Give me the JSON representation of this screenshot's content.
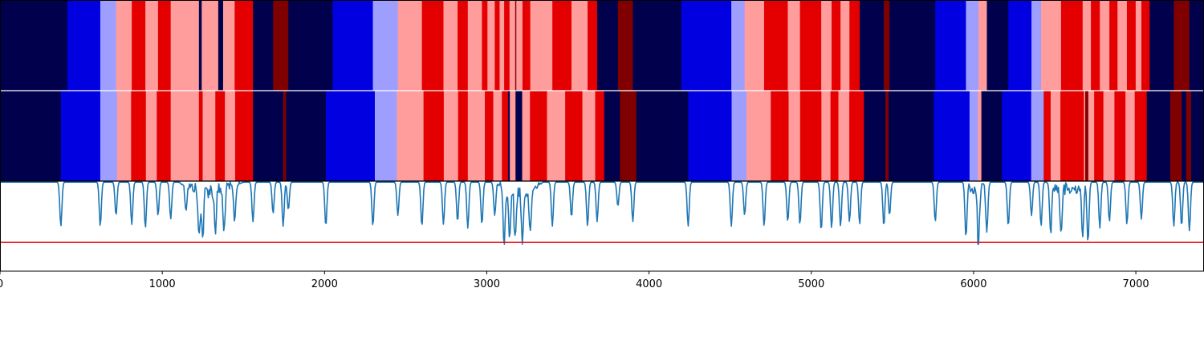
{
  "chart_data": {
    "type": "heatmap",
    "title": "",
    "xlabel": "",
    "ylabel": "",
    "xlim": [
      0,
      7420
    ],
    "x_ticks": [
      0,
      1000,
      2000,
      3000,
      4000,
      5000,
      6000,
      7000
    ],
    "x_tick_labels": [
      "0",
      "1000",
      "2000",
      "3000",
      "4000",
      "5000",
      "6000",
      "7000"
    ],
    "grid": false,
    "legend": "none",
    "colors": {
      "-3": "#00004c",
      "-2": "#0000e0",
      "-1": "#9e9eff",
      "1": "#ff9c9c",
      "2": "#e40000",
      "3": "#800000",
      "line": "#1f77b4",
      "threshold": "#e41a1c",
      "separator": "#ffffff"
    },
    "strips": [
      {
        "segments": [
          [
            0,
            -3
          ],
          [
            415,
            -2
          ],
          [
            618,
            -1
          ],
          [
            715,
            1
          ],
          [
            812,
            2
          ],
          [
            896,
            1
          ],
          [
            974,
            2
          ],
          [
            1052,
            1
          ],
          [
            1226,
            -3
          ],
          [
            1243,
            1
          ],
          [
            1345,
            -3
          ],
          [
            1375,
            1
          ],
          [
            1446,
            2
          ],
          [
            1559,
            -3
          ],
          [
            1683,
            3
          ],
          [
            1777,
            -3
          ],
          [
            2050,
            -2
          ],
          [
            2298,
            -1
          ],
          [
            2452,
            1
          ],
          [
            2600,
            2
          ],
          [
            2733,
            1
          ],
          [
            2820,
            2
          ],
          [
            2883,
            1
          ],
          [
            2970,
            2
          ],
          [
            3004,
            1
          ],
          [
            3049,
            2
          ],
          [
            3079,
            1
          ],
          [
            3107,
            2
          ],
          [
            3140,
            1
          ],
          [
            3175,
            3
          ],
          [
            3182,
            1
          ],
          [
            3220,
            2
          ],
          [
            3268,
            1
          ],
          [
            3404,
            2
          ],
          [
            3522,
            1
          ],
          [
            3621,
            2
          ],
          [
            3680,
            -3
          ],
          [
            3808,
            3
          ],
          [
            3900,
            -3
          ],
          [
            4199,
            -2
          ],
          [
            4507,
            -1
          ],
          [
            4589,
            1
          ],
          [
            4709,
            2
          ],
          [
            4855,
            1
          ],
          [
            4930,
            2
          ],
          [
            5061,
            1
          ],
          [
            5125,
            2
          ],
          [
            5180,
            1
          ],
          [
            5235,
            2
          ],
          [
            5298,
            -3
          ],
          [
            5447,
            3
          ],
          [
            5482,
            -3
          ],
          [
            5764,
            -2
          ],
          [
            5953,
            -1
          ],
          [
            6030,
            1
          ],
          [
            6082,
            -3
          ],
          [
            6214,
            -2
          ],
          [
            6357,
            -1
          ],
          [
            6416,
            1
          ],
          [
            6539,
            2
          ],
          [
            6672,
            1
          ],
          [
            6723,
            2
          ],
          [
            6778,
            1
          ],
          [
            6837,
            2
          ],
          [
            6887,
            1
          ],
          [
            6945,
            2
          ],
          [
            6999,
            1
          ],
          [
            7034,
            2
          ],
          [
            7085,
            -3
          ],
          [
            7234,
            3
          ],
          [
            7330,
            -3
          ]
        ]
      },
      {
        "segments": [
          [
            0,
            -3
          ],
          [
            375,
            -2
          ],
          [
            618,
            -1
          ],
          [
            721,
            1
          ],
          [
            808,
            2
          ],
          [
            899,
            1
          ],
          [
            966,
            2
          ],
          [
            1052,
            1
          ],
          [
            1226,
            2
          ],
          [
            1249,
            1
          ],
          [
            1327,
            2
          ],
          [
            1386,
            1
          ],
          [
            1449,
            2
          ],
          [
            1559,
            -3
          ],
          [
            1745,
            3
          ],
          [
            1763,
            -3
          ],
          [
            2008,
            -2
          ],
          [
            2310,
            -1
          ],
          [
            2445,
            1
          ],
          [
            2610,
            2
          ],
          [
            2735,
            1
          ],
          [
            2823,
            2
          ],
          [
            2883,
            1
          ],
          [
            2988,
            2
          ],
          [
            3040,
            1
          ],
          [
            3093,
            2
          ],
          [
            3131,
            -3
          ],
          [
            3142,
            1
          ],
          [
            3177,
            -3
          ],
          [
            3218,
            1
          ],
          [
            3266,
            2
          ],
          [
            3371,
            1
          ],
          [
            3483,
            2
          ],
          [
            3589,
            1
          ],
          [
            3668,
            2
          ],
          [
            3723,
            -3
          ],
          [
            3821,
            3
          ],
          [
            3922,
            -3
          ],
          [
            4241,
            -2
          ],
          [
            4509,
            -1
          ],
          [
            4600,
            1
          ],
          [
            4750,
            2
          ],
          [
            4860,
            1
          ],
          [
            4931,
            2
          ],
          [
            5062,
            1
          ],
          [
            5118,
            2
          ],
          [
            5167,
            1
          ],
          [
            5234,
            2
          ],
          [
            5324,
            -3
          ],
          [
            5457,
            3
          ],
          [
            5476,
            -3
          ],
          [
            5755,
            -2
          ],
          [
            5975,
            -1
          ],
          [
            6026,
            1
          ],
          [
            6048,
            -3
          ],
          [
            6175,
            -2
          ],
          [
            6355,
            -1
          ],
          [
            6432,
            2
          ],
          [
            6475,
            1
          ],
          [
            6535,
            2
          ],
          [
            6680,
            1
          ],
          [
            6688,
            3
          ],
          [
            6707,
            1
          ],
          [
            6743,
            2
          ],
          [
            6800,
            1
          ],
          [
            6868,
            2
          ],
          [
            6936,
            1
          ],
          [
            6993,
            2
          ],
          [
            7067,
            -3
          ],
          [
            7212,
            3
          ],
          [
            7282,
            -3
          ],
          [
            7310,
            3
          ],
          [
            7340,
            -3
          ]
        ]
      }
    ],
    "line_panel": {
      "ylim": [
        0,
        1
      ],
      "threshold": 0.32,
      "baseline": 0.99,
      "spikes": [
        [
          375,
          0.5
        ],
        [
          618,
          0.5
        ],
        [
          715,
          0.62
        ],
        [
          812,
          0.52
        ],
        [
          896,
          0.48
        ],
        [
          974,
          0.62
        ],
        [
          1052,
          0.58
        ],
        [
          1146,
          0.72
        ],
        [
          1226,
          0.45
        ],
        [
          1249,
          0.45
        ],
        [
          1327,
          0.55
        ],
        [
          1380,
          0.5
        ],
        [
          1446,
          0.6
        ],
        [
          1559,
          0.55
        ],
        [
          1683,
          0.64
        ],
        [
          1745,
          0.5
        ],
        [
          1777,
          0.68
        ],
        [
          2008,
          0.5
        ],
        [
          2298,
          0.5
        ],
        [
          2452,
          0.62
        ],
        [
          2600,
          0.5
        ],
        [
          2733,
          0.52
        ],
        [
          2820,
          0.55
        ],
        [
          2883,
          0.48
        ],
        [
          2970,
          0.52
        ],
        [
          3049,
          0.62
        ],
        [
          3107,
          0.35
        ],
        [
          3140,
          0.45
        ],
        [
          3175,
          0.4
        ],
        [
          3220,
          0.35
        ],
        [
          3268,
          0.45
        ],
        [
          3404,
          0.5
        ],
        [
          3522,
          0.6
        ],
        [
          3621,
          0.5
        ],
        [
          3680,
          0.55
        ],
        [
          3808,
          0.72
        ],
        [
          3900,
          0.55
        ],
        [
          4241,
          0.5
        ],
        [
          4507,
          0.5
        ],
        [
          4589,
          0.62
        ],
        [
          4709,
          0.5
        ],
        [
          4855,
          0.55
        ],
        [
          4930,
          0.52
        ],
        [
          5061,
          0.45
        ],
        [
          5125,
          0.48
        ],
        [
          5180,
          0.5
        ],
        [
          5235,
          0.55
        ],
        [
          5298,
          0.52
        ],
        [
          5447,
          0.5
        ],
        [
          5482,
          0.62
        ],
        [
          5764,
          0.55
        ],
        [
          5953,
          0.38
        ],
        [
          6030,
          0.35
        ],
        [
          6082,
          0.48
        ],
        [
          6214,
          0.5
        ],
        [
          6357,
          0.62
        ],
        [
          6416,
          0.5
        ],
        [
          6475,
          0.45
        ],
        [
          6539,
          0.52
        ],
        [
          6672,
          0.4
        ],
        [
          6705,
          0.32
        ],
        [
          6778,
          0.48
        ],
        [
          6837,
          0.55
        ],
        [
          6945,
          0.52
        ],
        [
          7034,
          0.58
        ],
        [
          7234,
          0.5
        ],
        [
          7282,
          0.5
        ],
        [
          7330,
          0.45
        ]
      ],
      "noise_regions": [
        [
          1100,
          1500
        ],
        [
          3050,
          3350
        ],
        [
          5950,
          6100
        ],
        [
          6450,
          6700
        ]
      ]
    }
  }
}
